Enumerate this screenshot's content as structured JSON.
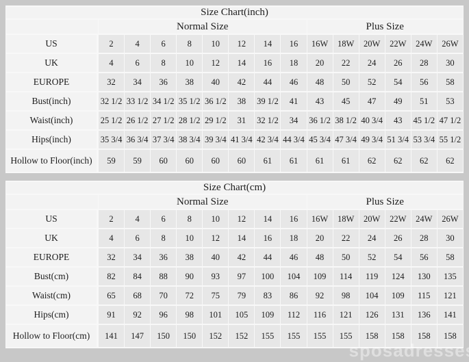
{
  "watermark": "sposadresses",
  "colors": {
    "page_bg": "#c8c8c8",
    "header_cell_bg": "#f3f3f3",
    "data_cell_bg": "#e7e7e7",
    "grid_line": "#f8f8f8",
    "text": "#1c1c1c"
  },
  "tables": [
    {
      "title": "Size Chart(inch)",
      "group_headers": {
        "normal": "Normal Size",
        "plus": "Plus Size"
      },
      "rows": [
        {
          "label": "US",
          "values": [
            "2",
            "4",
            "6",
            "8",
            "10",
            "12",
            "14",
            "16",
            "16W",
            "18W",
            "20W",
            "22W",
            "24W",
            "26W"
          ]
        },
        {
          "label": "UK",
          "values": [
            "4",
            "6",
            "8",
            "10",
            "12",
            "14",
            "16",
            "18",
            "20",
            "22",
            "24",
            "26",
            "28",
            "30"
          ]
        },
        {
          "label": "EUROPE",
          "values": [
            "32",
            "34",
            "36",
            "38",
            "40",
            "42",
            "44",
            "46",
            "48",
            "50",
            "52",
            "54",
            "56",
            "58"
          ]
        },
        {
          "label": "Bust(inch)",
          "values": [
            "32 1/2",
            "33 1/2",
            "34 1/2",
            "35 1/2",
            "36 1/2",
            "38",
            "39 1/2",
            "41",
            "43",
            "45",
            "47",
            "49",
            "51",
            "53"
          ]
        },
        {
          "label": "Waist(inch)",
          "values": [
            "25 1/2",
            "26 1/2",
            "27 1/2",
            "28 1/2",
            "29 1/2",
            "31",
            "32 1/2",
            "34",
            "36 1/2",
            "38 1/2",
            "40 3/4",
            "43",
            "45 1/2",
            "47 1/2"
          ]
        },
        {
          "label": "Hips(inch)",
          "values": [
            "35 3/4",
            "36 3/4",
            "37 3/4",
            "38 3/4",
            "39 3/4",
            "41 3/4",
            "42 3/4",
            "44 3/4",
            "45 3/4",
            "47 3/4",
            "49 3/4",
            "51 3/4",
            "53 3/4",
            "55 1/2"
          ]
        },
        {
          "label": "Hollow to Floor(inch)",
          "values": [
            "59",
            "59",
            "60",
            "60",
            "60",
            "60",
            "61",
            "61",
            "61",
            "61",
            "62",
            "62",
            "62",
            "62"
          ]
        }
      ]
    },
    {
      "title": "Size Chart(cm)",
      "group_headers": {
        "normal": "Normal Size",
        "plus": "Plus Size"
      },
      "rows": [
        {
          "label": "US",
          "values": [
            "2",
            "4",
            "6",
            "8",
            "10",
            "12",
            "14",
            "16",
            "16W",
            "18W",
            "20W",
            "22W",
            "24W",
            "26W"
          ]
        },
        {
          "label": "UK",
          "values": [
            "4",
            "6",
            "8",
            "10",
            "12",
            "14",
            "16",
            "18",
            "20",
            "22",
            "24",
            "26",
            "28",
            "30"
          ]
        },
        {
          "label": "EUROPE",
          "values": [
            "32",
            "34",
            "36",
            "38",
            "40",
            "42",
            "44",
            "46",
            "48",
            "50",
            "52",
            "54",
            "56",
            "58"
          ]
        },
        {
          "label": "Bust(cm)",
          "values": [
            "82",
            "84",
            "88",
            "90",
            "93",
            "97",
            "100",
            "104",
            "109",
            "114",
            "119",
            "124",
            "130",
            "135"
          ]
        },
        {
          "label": "Waist(cm)",
          "values": [
            "65",
            "68",
            "70",
            "72",
            "75",
            "79",
            "83",
            "86",
            "92",
            "98",
            "104",
            "109",
            "115",
            "121"
          ]
        },
        {
          "label": "Hips(cm)",
          "values": [
            "91",
            "92",
            "96",
            "98",
            "101",
            "105",
            "109",
            "112",
            "116",
            "121",
            "126",
            "131",
            "136",
            "141"
          ]
        },
        {
          "label": "Hollow to Floor(cm)",
          "values": [
            "141",
            "147",
            "150",
            "150",
            "152",
            "152",
            "155",
            "155",
            "155",
            "155",
            "158",
            "158",
            "158",
            "158"
          ]
        }
      ]
    }
  ]
}
